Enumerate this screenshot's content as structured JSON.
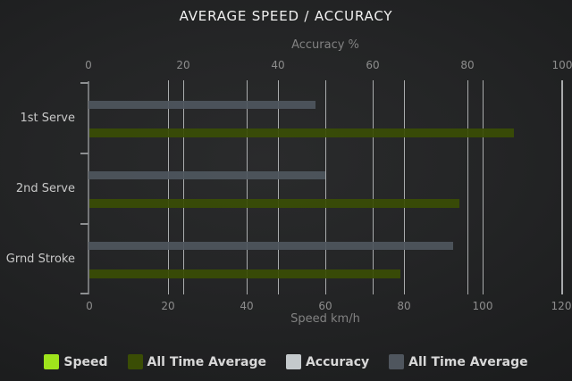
{
  "title": "AVERAGE SPEED / ACCURACY",
  "chart_data": {
    "type": "bar",
    "orientation": "horizontal",
    "title": "AVERAGE SPEED / ACCURACY",
    "categories": [
      "1st Serve",
      "2nd Serve",
      "Grnd Stroke"
    ],
    "series": [
      {
        "name": "All Time Average",
        "key": "accuracy-all-time-average",
        "axis": "accuracy",
        "color": "#4f565e",
        "values": [
          48,
          50,
          77
        ]
      },
      {
        "name": "All Time Average",
        "key": "speed-all-time-average",
        "axis": "speed",
        "color": "#3a4d05",
        "values": [
          108,
          94,
          79
        ]
      }
    ],
    "top_axis": {
      "label": "Accuracy %",
      "ticks": [
        0,
        20,
        40,
        60,
        80,
        100
      ],
      "range": [
        0,
        100
      ]
    },
    "bottom_axis": {
      "label": "Speed km/h",
      "ticks": [
        0,
        20,
        40,
        60,
        80,
        100,
        120
      ],
      "range": [
        0,
        120
      ]
    },
    "grid": true,
    "legend_position": "bottom"
  },
  "legend": {
    "items": [
      {
        "label": "Speed",
        "color": "#9fe41c"
      },
      {
        "label": "All Time Average",
        "color": "#3a4d05"
      },
      {
        "label": "Accuracy",
        "color": "#c4c9cc"
      },
      {
        "label": "All Time Average",
        "color": "#4f565e"
      }
    ]
  }
}
